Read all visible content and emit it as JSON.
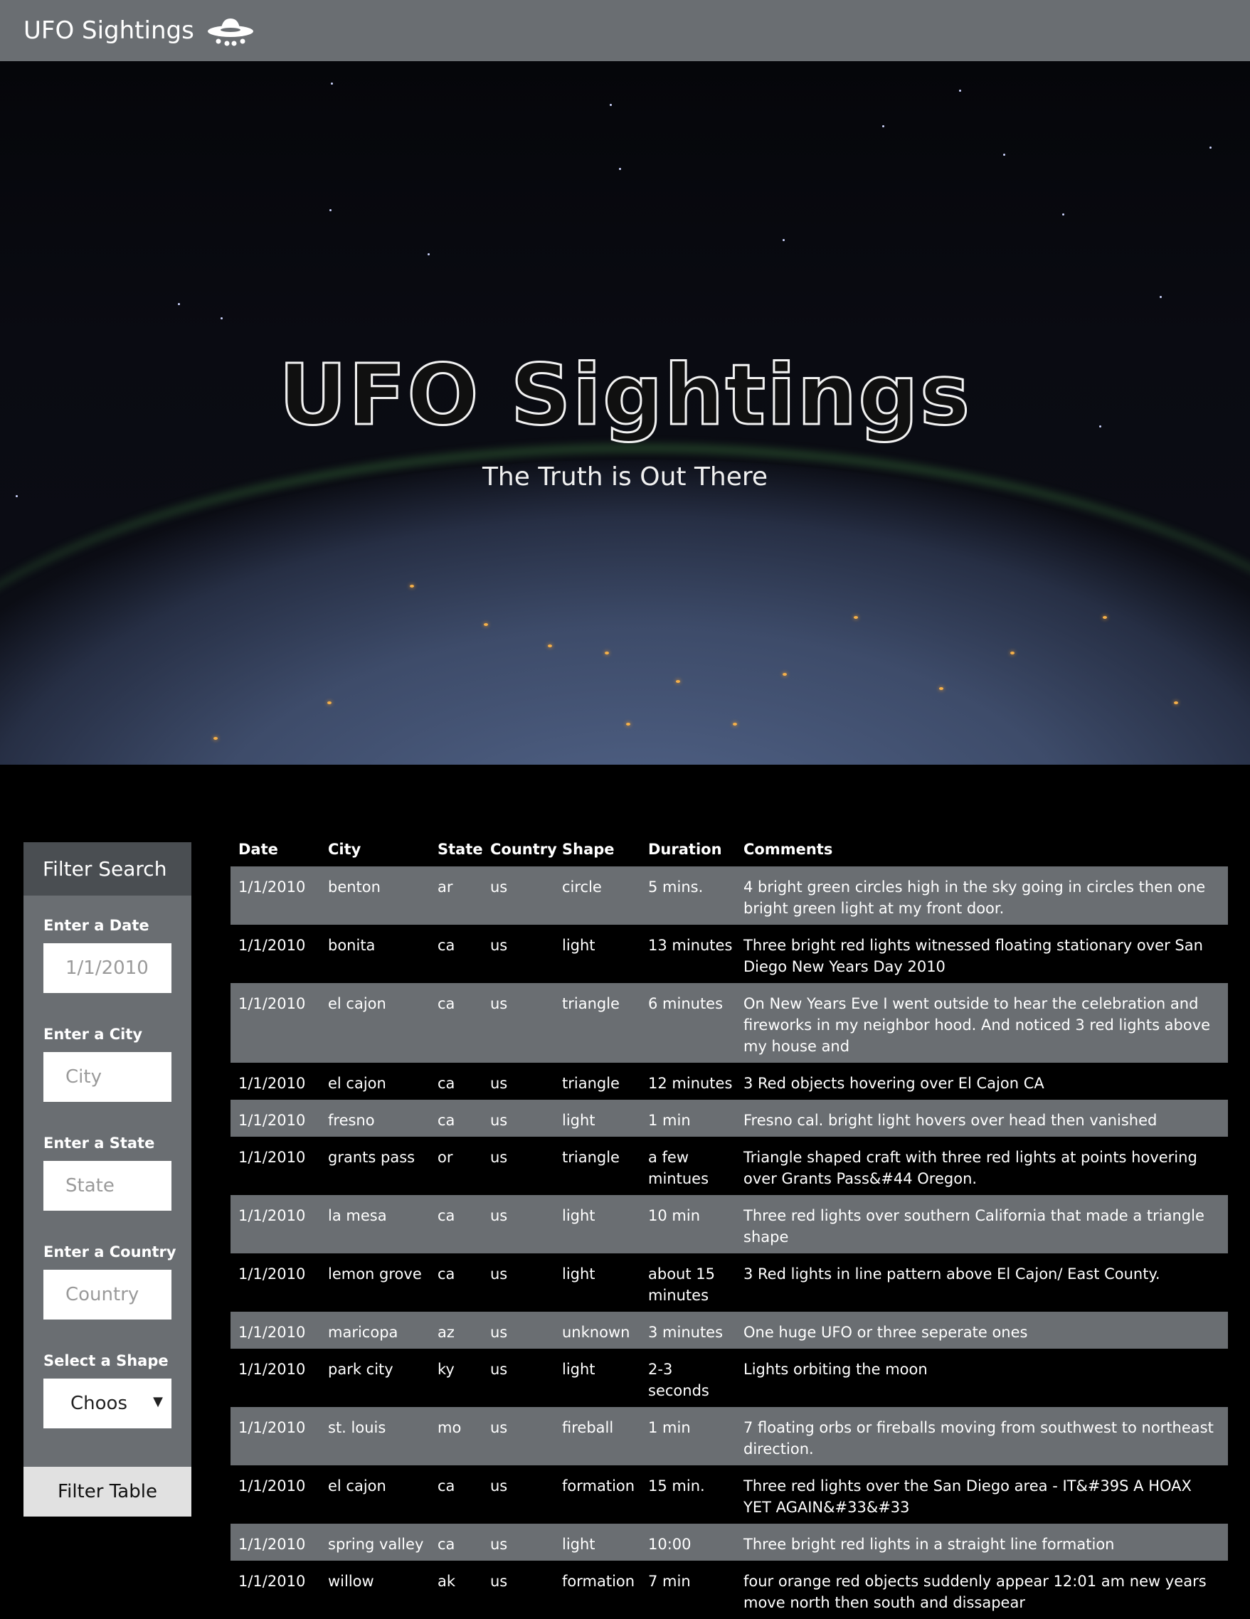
{
  "navbar": {
    "brand": "UFO Sightings",
    "icon": "ufo-icon"
  },
  "hero": {
    "title": "UFO Sightings",
    "subtitle": "The Truth is Out There"
  },
  "filter": {
    "title": "Filter Search",
    "date_label": "Enter a Date",
    "date_placeholder": "1/1/2010",
    "city_label": "Enter a City",
    "city_placeholder": "City",
    "state_label": "Enter a State",
    "state_placeholder": "State",
    "country_label": "Enter a Country",
    "country_placeholder": "Country",
    "shape_label": "Select a Shape",
    "shape_selected": "Choos",
    "button": "Filter Table"
  },
  "table": {
    "headers": [
      "Date",
      "City",
      "State",
      "Country",
      "Shape",
      "Duration",
      "Comments"
    ],
    "rows": [
      [
        "1/1/2010",
        "benton",
        "ar",
        "us",
        "circle",
        "5 mins.",
        "4 bright green circles high in the sky going in circles then one bright green light at my front door."
      ],
      [
        "1/1/2010",
        "bonita",
        "ca",
        "us",
        "light",
        "13 minutes",
        "Three bright red lights witnessed floating stationary over San Diego New Years Day 2010"
      ],
      [
        "1/1/2010",
        "el cajon",
        "ca",
        "us",
        "triangle",
        "6 minutes",
        "On New Years Eve I went outside to hear the celebration and fireworks in my neighbor hood. And noticed 3 red lights above my house and"
      ],
      [
        "1/1/2010",
        "el cajon",
        "ca",
        "us",
        "triangle",
        "12 minutes",
        "3 Red objects hovering over El Cajon CA"
      ],
      [
        "1/1/2010",
        "fresno",
        "ca",
        "us",
        "light",
        "1 min",
        "Fresno cal. bright light hovers over head then vanished"
      ],
      [
        "1/1/2010",
        "grants pass",
        "or",
        "us",
        "triangle",
        "a few mintues",
        "Triangle shaped craft with three red lights at points hovering over Grants Pass&#44 Oregon."
      ],
      [
        "1/1/2010",
        "la mesa",
        "ca",
        "us",
        "light",
        "10 min",
        "Three red lights over southern California that made a triangle shape"
      ],
      [
        "1/1/2010",
        "lemon grove",
        "ca",
        "us",
        "light",
        "about 15 minutes",
        "3 Red lights in line pattern above El Cajon/ East County."
      ],
      [
        "1/1/2010",
        "maricopa",
        "az",
        "us",
        "unknown",
        "3 minutes",
        "One huge UFO or three seperate ones"
      ],
      [
        "1/1/2010",
        "park city",
        "ky",
        "us",
        "light",
        "2-3 seconds",
        "Lights orbiting the moon"
      ],
      [
        "1/1/2010",
        "st. louis",
        "mo",
        "us",
        "fireball",
        "1 min",
        "7 floating orbs or fireballs moving from southwest to northeast direction."
      ],
      [
        "1/1/2010",
        "el cajon",
        "ca",
        "us",
        "formation",
        "15 min.",
        "Three red lights over the San Diego area - IT&#39S A HOAX YET AGAIN&#33&#33"
      ],
      [
        "1/1/2010",
        "spring valley",
        "ca",
        "us",
        "light",
        "10:00",
        "Three bright red lights in a straight line formation"
      ],
      [
        "1/1/2010",
        "willow",
        "ak",
        "us",
        "formation",
        "7 min",
        "four orange red objects suddenly appear 12:01 am new years move north then south and dissapear"
      ]
    ]
  },
  "colors": {
    "navbar": "#6a6e72",
    "panel_header": "#4a4e52",
    "stripe": "#6a6e72",
    "button": "#e1e1e1"
  }
}
